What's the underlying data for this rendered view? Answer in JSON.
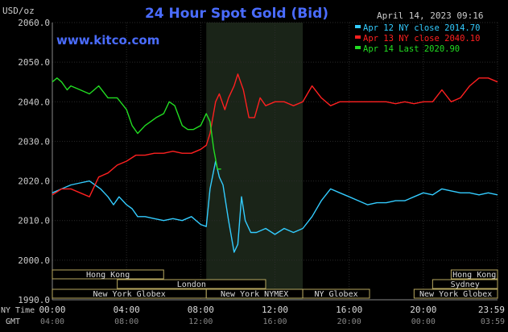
{
  "chart_data": {
    "type": "line",
    "title": "24 Hour Spot Gold (Bid)",
    "unit_label": "USD/oz",
    "date_label": "April 14, 2023 09:16",
    "website": "www.kitco.com",
    "ylim": [
      1990,
      2060
    ],
    "yticks": [
      "2060.0",
      "2050.0",
      "2040.0",
      "2030.0",
      "2020.0",
      "2010.0",
      "2000.0",
      "1990.0"
    ],
    "ytick_values": [
      2060,
      2050,
      2040,
      2030,
      2020,
      2010,
      2000,
      1990
    ],
    "x_row1_label": "NY Time",
    "x_row2_label": "GMT",
    "xticks_ny": [
      "00:00",
      "04:00",
      "08:00",
      "12:00",
      "16:00",
      "20:00",
      "23:59"
    ],
    "xticks_gmt": [
      "04:00",
      "08:00",
      "12:00",
      "16:00",
      "20:00",
      "00:00",
      "03:59"
    ],
    "xtick_hours": [
      0,
      4,
      8,
      12,
      16,
      20,
      24
    ],
    "shaded_hours": [
      8.3,
      13.5
    ],
    "legend": [
      {
        "label": "Apr 12 NY close 2014.70",
        "color": "#33ccff"
      },
      {
        "label": "Apr 13 NY close 2040.10",
        "color": "#ff2020"
      },
      {
        "label": "Apr 14 Last 2020.90",
        "color": "#22dd22"
      }
    ],
    "sessions": [
      {
        "label": "Hong Kong",
        "start": 0,
        "end": 6,
        "row": 0
      },
      {
        "label": "Hong Kong",
        "start": 21.5,
        "end": 24,
        "row": 0
      },
      {
        "label": "London",
        "start": 3.5,
        "end": 11.5,
        "row": 1
      },
      {
        "label": "Sydney",
        "start": 20.5,
        "end": 24,
        "row": 1
      },
      {
        "label": "New York Globex",
        "start": 0,
        "end": 8.3,
        "row": 2
      },
      {
        "label": "New York NYMEX",
        "start": 8.3,
        "end": 13.5,
        "row": 2
      },
      {
        "label": "NY Globex",
        "start": 13.5,
        "end": 17.1,
        "row": 2
      },
      {
        "label": "New York Globex",
        "start": 19.5,
        "end": 24,
        "row": 2
      }
    ],
    "series": [
      {
        "color": "#33ccff",
        "x": [
          0,
          0.5,
          1,
          1.5,
          2,
          2.3,
          2.6,
          3,
          3.3,
          3.6,
          4,
          4.3,
          4.6,
          5,
          5.5,
          6,
          6.5,
          7,
          7.5,
          8,
          8.3,
          8.5,
          8.8,
          9,
          9.2,
          9.5,
          9.8,
          10,
          10.2,
          10.4,
          10.7,
          11,
          11.5,
          12,
          12.5,
          13,
          13.5,
          14,
          14.5,
          15,
          15.5,
          16,
          16.5,
          17,
          17.5,
          18,
          18.5,
          19,
          19.5,
          20,
          20.5,
          21,
          21.5,
          22,
          22.5,
          23,
          23.5,
          24
        ],
        "y": [
          2017,
          2018,
          2019,
          2019.5,
          2020,
          2019,
          2018,
          2016,
          2014,
          2016,
          2014,
          2013,
          2011,
          2011,
          2010.5,
          2010,
          2010.5,
          2010,
          2011,
          2009,
          2008.5,
          2018,
          2025,
          2021,
          2019,
          2010,
          2002,
          2004,
          2016,
          2010,
          2007,
          2007,
          2008,
          2006.5,
          2008,
          2007,
          2008,
          2011,
          2015,
          2018,
          2017,
          2016,
          2015,
          2014,
          2014.5,
          2014.5,
          2015,
          2015,
          2016,
          2017,
          2016.5,
          2018,
          2017.5,
          2017,
          2017,
          2016.5,
          2017,
          2016.5
        ]
      },
      {
        "color": "#ff2020",
        "x": [
          0,
          0.5,
          1,
          1.5,
          2,
          2.5,
          3,
          3.5,
          4,
          4.5,
          5,
          5.5,
          6,
          6.5,
          7,
          7.5,
          8,
          8.3,
          8.5,
          8.8,
          9,
          9.3,
          9.5,
          9.8,
          10,
          10.3,
          10.6,
          10.9,
          11.2,
          11.5,
          12,
          12.5,
          13,
          13.5,
          14,
          14.5,
          15,
          15.5,
          16,
          16.5,
          17,
          17.5,
          18,
          18.5,
          19,
          19.5,
          20,
          20.5,
          21,
          21.5,
          22,
          22.5,
          23,
          23.5,
          24
        ],
        "y": [
          2016.5,
          2018,
          2018,
          2017,
          2016,
          2021,
          2022,
          2024,
          2025,
          2026.5,
          2026.5,
          2027,
          2027,
          2027.5,
          2027,
          2027,
          2028,
          2029,
          2032,
          2040,
          2042,
          2038,
          2041,
          2044,
          2047,
          2043,
          2036,
          2036,
          2041,
          2039,
          2040,
          2040,
          2039,
          2040,
          2044,
          2041,
          2039,
          2040,
          2040,
          2040,
          2040,
          2040,
          2040,
          2039.5,
          2040,
          2039.5,
          2040,
          2040,
          2043,
          2040,
          2041,
          2044,
          2046,
          2046,
          2045
        ]
      },
      {
        "color": "#22dd22",
        "x": [
          0,
          0.25,
          0.5,
          0.8,
          1,
          1.5,
          2,
          2.5,
          3,
          3.5,
          4,
          4.3,
          4.6,
          5,
          5.3,
          5.6,
          6,
          6.3,
          6.6,
          7,
          7.3,
          7.6,
          8,
          8.3,
          8.5,
          8.7,
          8.9,
          9.1
        ],
        "y": [
          2045,
          2046,
          2045,
          2043,
          2044,
          2043,
          2042,
          2044,
          2041,
          2041,
          2038,
          2034,
          2032,
          2034,
          2035,
          2036,
          2037,
          2040,
          2039,
          2034,
          2033,
          2033,
          2034,
          2037,
          2035,
          2028,
          2023,
          2023
        ]
      }
    ]
  }
}
